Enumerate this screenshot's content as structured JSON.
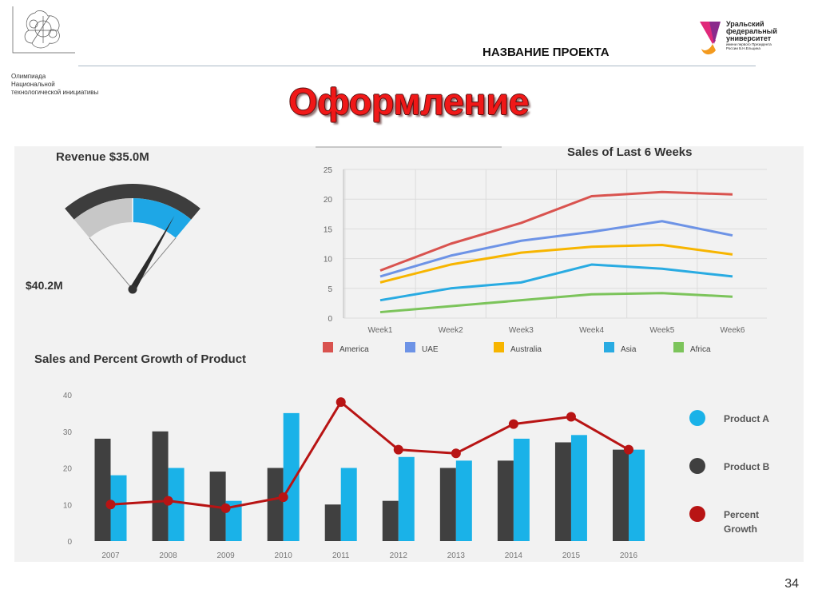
{
  "header": {
    "olymp_lines": [
      "Олимпиада",
      "Национальной",
      "технологической инициативы"
    ],
    "project_name": "НАЗВАНИЕ ПРОЕКТА",
    "urfu_lines": [
      "Уральский",
      "федеральный",
      "университет"
    ],
    "urfu_small_lines": [
      "имени первого Президента",
      "России Б.Н.Ельцина"
    ]
  },
  "slide_title": "Оформление",
  "page_number": "34",
  "colors": {
    "title": "#f01818",
    "gauge_dark": "#3d3d3d",
    "gauge_blue": "#1ea7e6",
    "gauge_grey": "#c7c7c7"
  },
  "chart_data": [
    {
      "type": "gauge",
      "title": "Revenue $35.0M",
      "value": 35.0,
      "max_label": "$40.2M",
      "max": 40.2
    },
    {
      "type": "line",
      "title": "Sales of Last 6 Weeks",
      "categories": [
        "Week1",
        "Week2",
        "Week3",
        "Week4",
        "Week5",
        "Week6"
      ],
      "ylim": [
        0,
        25
      ],
      "yticks": [
        "0",
        "5",
        "10",
        "15",
        "20",
        "25"
      ],
      "grid": true,
      "legend": "bottom",
      "series": [
        {
          "name": "America",
          "color": "#d9534f",
          "values": [
            8,
            12.5,
            16,
            20.5,
            21.2,
            20.8
          ]
        },
        {
          "name": "UAE",
          "color": "#6d93e6",
          "values": [
            7,
            10.5,
            13,
            14.5,
            16.3,
            13.9
          ]
        },
        {
          "name": "Australia",
          "color": "#f7b500",
          "values": [
            6,
            9,
            11,
            12,
            12.3,
            10.7
          ]
        },
        {
          "name": "Asia",
          "color": "#29abe2",
          "values": [
            3,
            5,
            6,
            9,
            8.3,
            7
          ]
        },
        {
          "name": "Africa",
          "color": "#7cc45b",
          "values": [
            1,
            2,
            3,
            4,
            4.2,
            3.6
          ]
        }
      ]
    },
    {
      "type": "bar",
      "title": "Sales and Percent Growth of Product",
      "categories": [
        "2007",
        "2008",
        "2009",
        "2010",
        "2011",
        "2012",
        "2013",
        "2014",
        "2015",
        "2016"
      ],
      "ylim": [
        0,
        40
      ],
      "yticks": [
        "0",
        "10",
        "20",
        "30",
        "40"
      ],
      "legend": "right",
      "series": [
        {
          "name": "Product A",
          "color": "#1ab2e8",
          "values": [
            18,
            20,
            11,
            35,
            20,
            23,
            22,
            28,
            29,
            25
          ]
        },
        {
          "name": "Product B",
          "color": "#404040",
          "values": [
            28,
            30,
            19,
            20,
            10,
            11,
            20,
            22,
            27,
            25
          ]
        },
        {
          "name": "Percent Growth",
          "color": "#b81414",
          "type": "line",
          "values": [
            10,
            11,
            9,
            12,
            38,
            25,
            24,
            32,
            34,
            25
          ]
        }
      ]
    }
  ]
}
